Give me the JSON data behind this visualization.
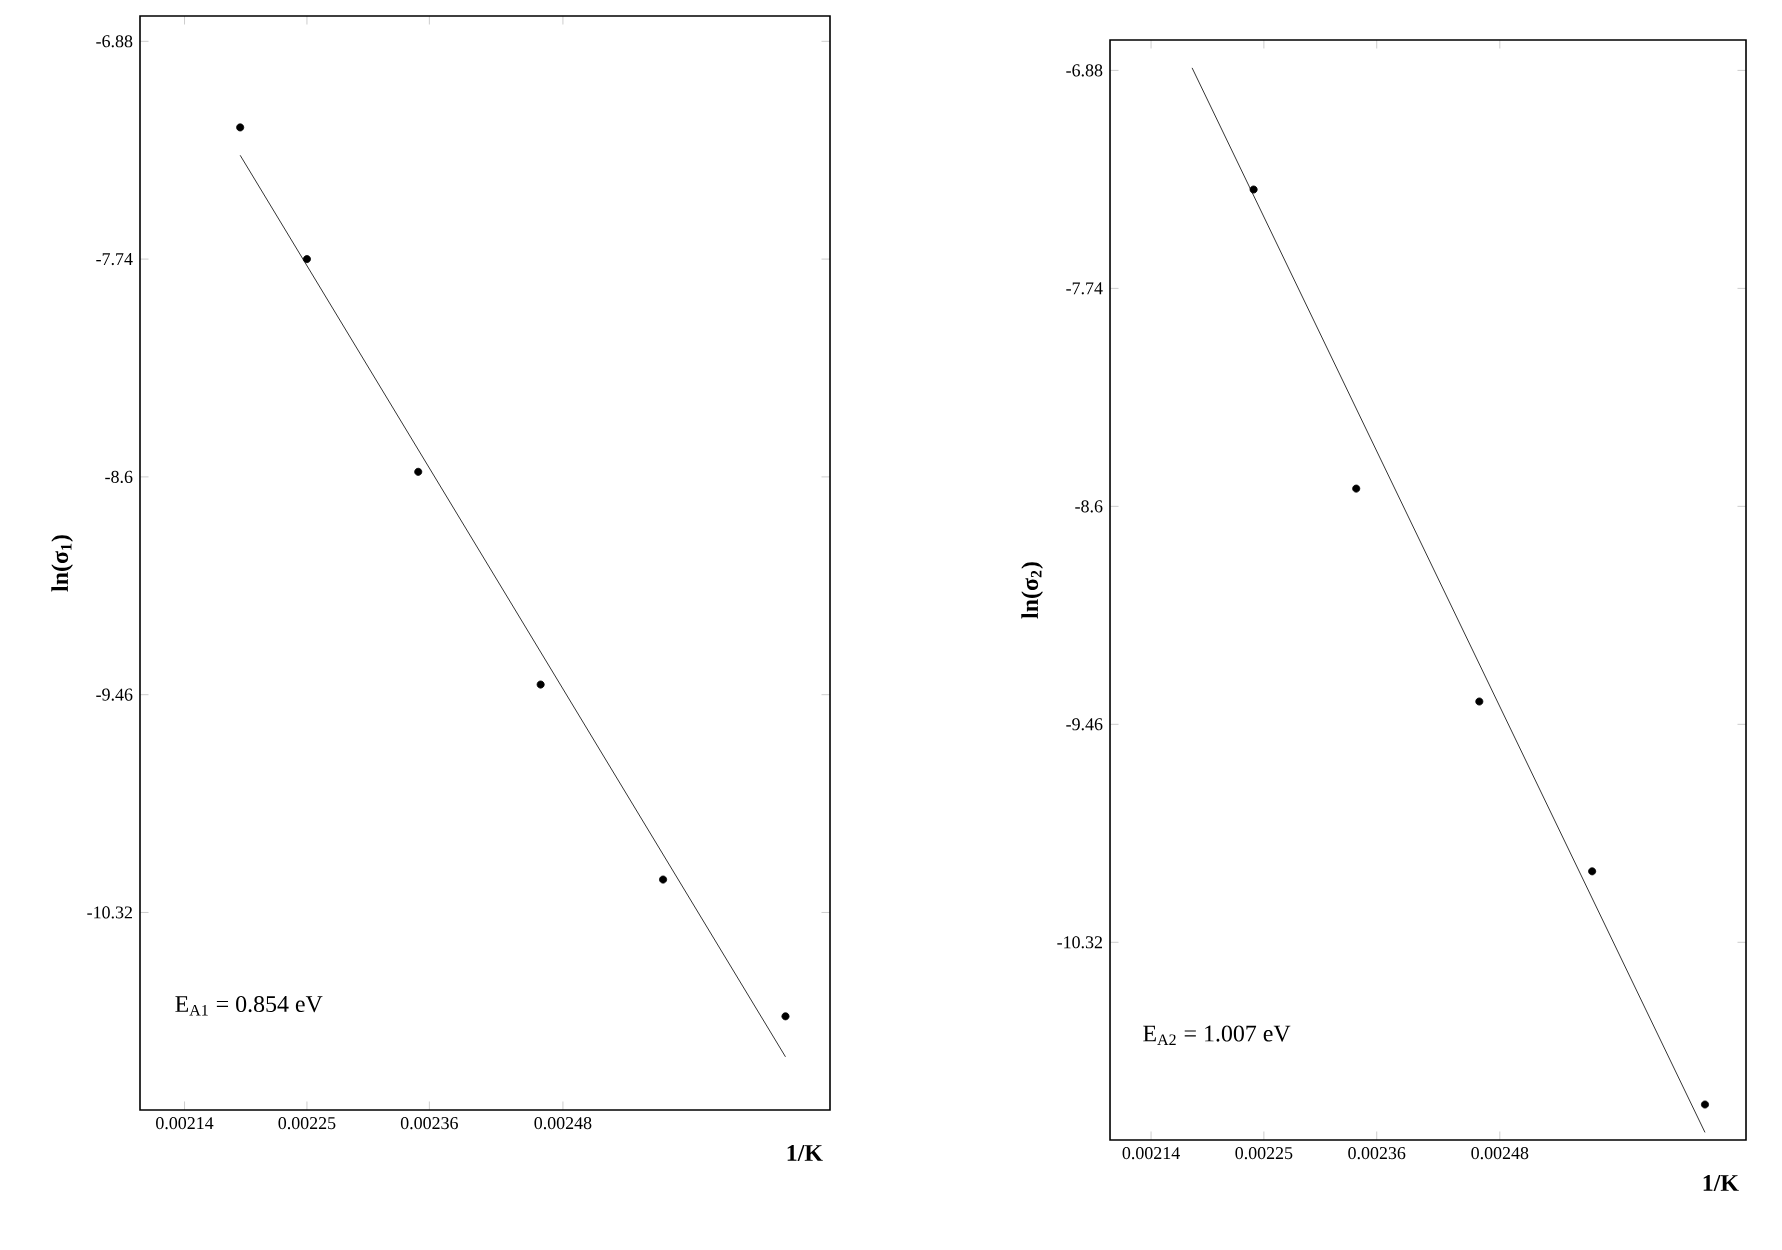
{
  "chart_data": [
    {
      "type": "scatter",
      "xlabel": "1/K",
      "ylabel": "ln(σ$_{1}$)",
      "annotations": [
        "E$_{A1}$ = 0.854 eV"
      ],
      "xlim": [
        0.0021,
        0.00272
      ],
      "ylim": [
        -11.1,
        -6.78
      ],
      "xticks": [
        0.00214,
        0.00225,
        0.00236,
        0.00248
      ],
      "yticks": [
        -6.88,
        -7.74,
        -8.6,
        -9.46,
        -10.32
      ],
      "marker": "circle",
      "grid": false,
      "series": [
        {
          "color": "#000000",
          "x": [
            0.00219,
            0.00225,
            0.00235,
            0.00246,
            0.00257,
            0.00268
          ],
          "values": [
            -7.22,
            -7.74,
            -8.58,
            -9.42,
            -10.19,
            -10.73
          ]
        },
        {
          "type": "line",
          "color": "#000000",
          "marker": "none",
          "x": [
            0.00219,
            0.00268
          ],
          "values": [
            -7.33,
            -10.89
          ]
        }
      ]
    },
    {
      "type": "scatter",
      "xlabel": "1/K",
      "ylabel": "ln(σ$_{2}$)",
      "annotations": [
        "E$_{A2}$ = 1.007 eV"
      ],
      "xlim": [
        0.0021,
        0.00272
      ],
      "ylim": [
        -11.1,
        -6.76
      ],
      "xticks": [
        0.00214,
        0.00225,
        0.00236,
        0.00248
      ],
      "yticks": [
        -6.88,
        -7.74,
        -8.6,
        -9.46,
        -10.32
      ],
      "marker": "circle",
      "grid": false,
      "series": [
        {
          "color": "#000000",
          "x": [
            0.00224,
            0.00234,
            0.00246,
            0.00257,
            0.00268
          ],
          "values": [
            -7.35,
            -8.53,
            -9.37,
            -10.04,
            -10.96
          ]
        },
        {
          "type": "line",
          "color": "#000000",
          "marker": "none",
          "x": [
            0.00218,
            0.00268
          ],
          "values": [
            -6.87,
            -11.07
          ]
        }
      ]
    }
  ]
}
